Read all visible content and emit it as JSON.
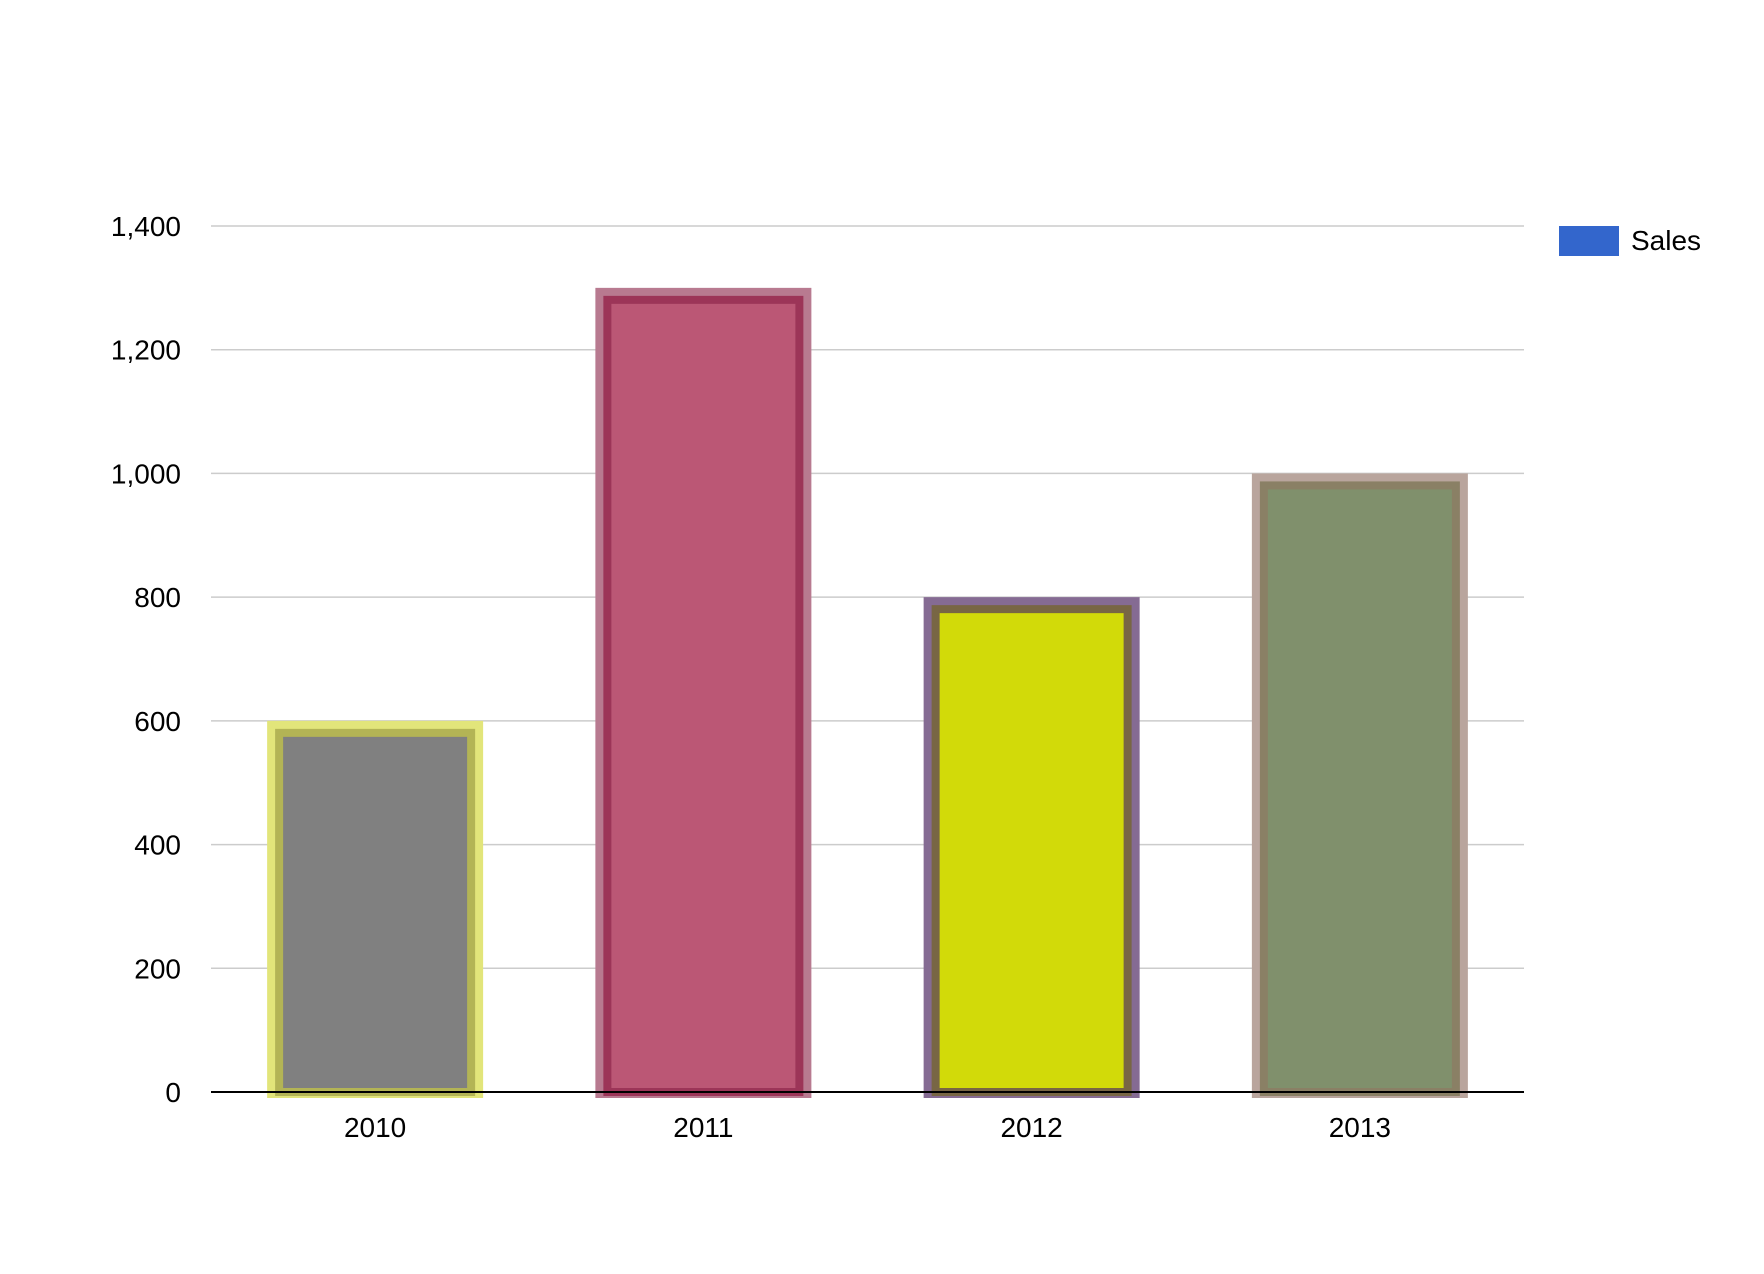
{
  "chart_data": {
    "type": "bar",
    "categories": [
      "2010",
      "2011",
      "2012",
      "2013"
    ],
    "series": [
      {
        "name": "Sales",
        "values": [
          600,
          1300,
          800,
          1000
        ]
      }
    ],
    "ylim": [
      0,
      1400
    ],
    "yticks": [
      0,
      200,
      400,
      600,
      800,
      1000,
      1200,
      1400
    ],
    "ytick_labels": [
      "0",
      "200",
      "400",
      "600",
      "800",
      "1,000",
      "1,200",
      "1,400"
    ],
    "grid": true,
    "legend_position": "right",
    "legend_color": "#3366cc",
    "bar_fills": [
      "#808080",
      "#bb5775",
      "#d2da09",
      "#80906c"
    ],
    "bar_outer_borders": [
      "#e2e57a",
      "#b87a90",
      "#856b93",
      "#b9a59d"
    ],
    "bar_inner_borders": [
      "#b3b455",
      "#9c3558",
      "#786644",
      "#8a8065"
    ]
  }
}
